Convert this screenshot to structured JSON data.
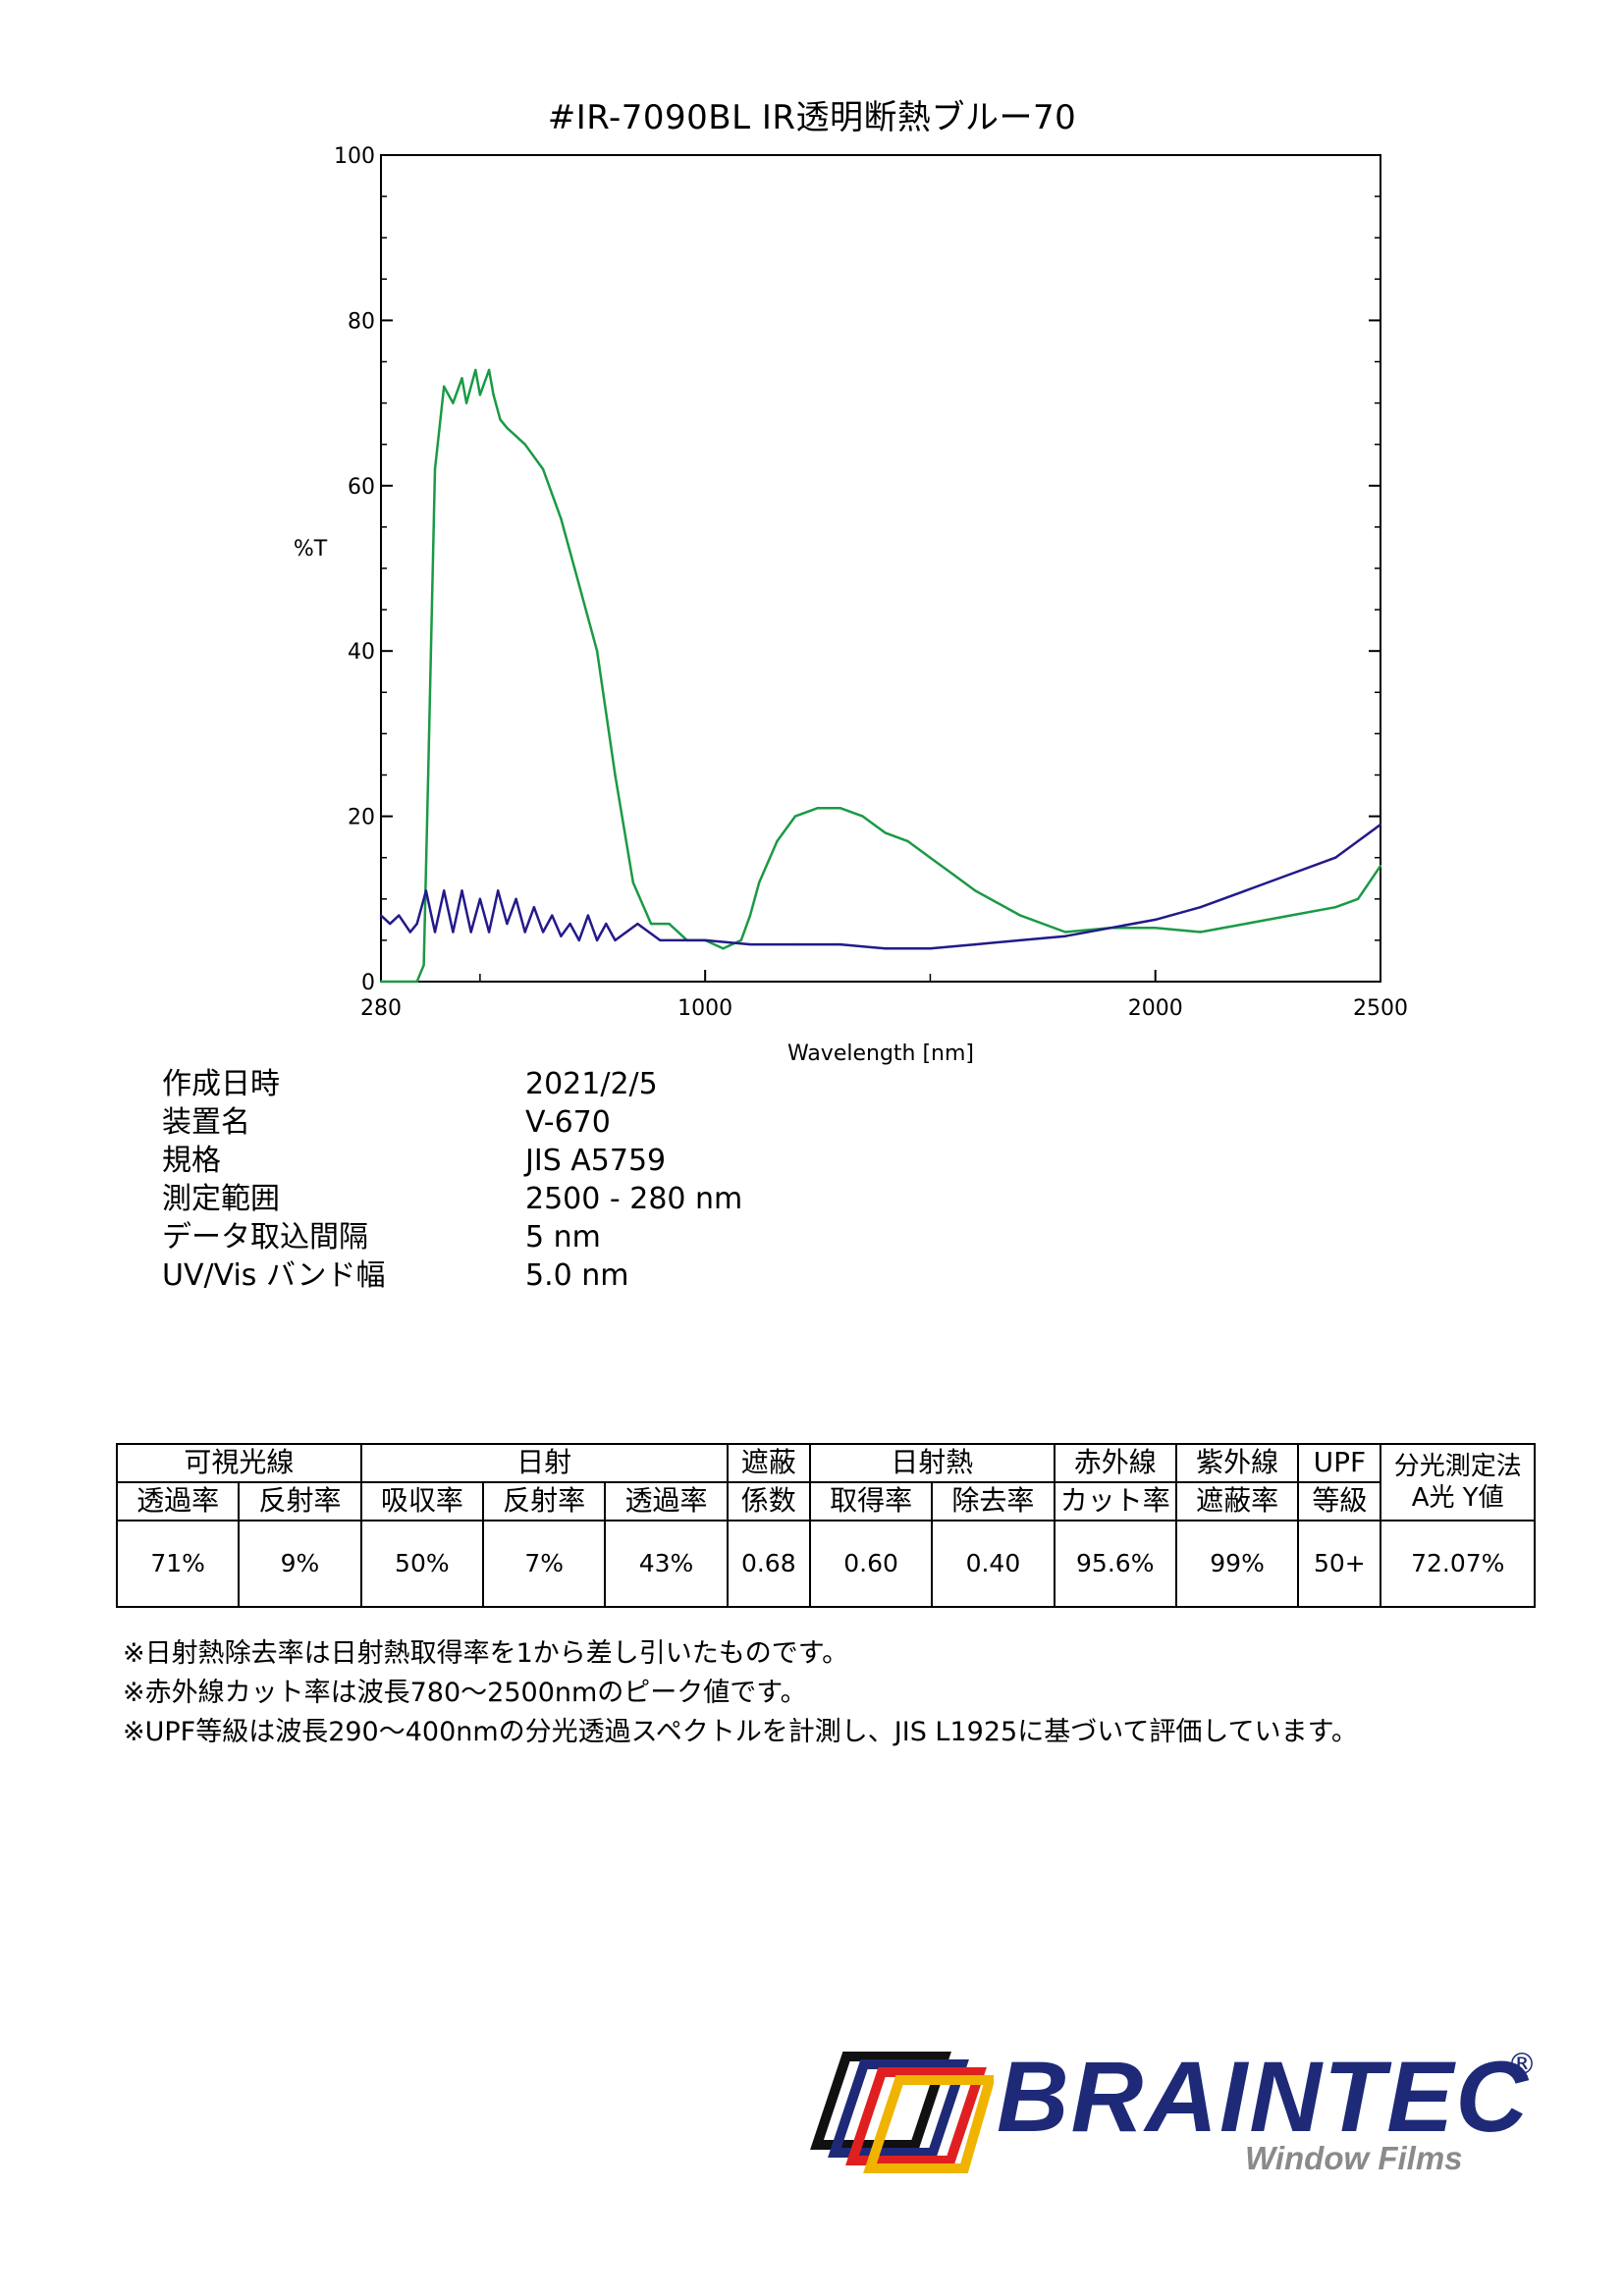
{
  "document": {
    "title": "#IR-7090BL  IR透明断熱ブルー70"
  },
  "chart_data": {
    "type": "line",
    "xlabel": "Wavelength [nm]",
    "ylabel": "%T",
    "xlim": [
      280,
      2500
    ],
    "ylim": [
      0,
      100
    ],
    "x_ticks": [
      280,
      1000,
      2000,
      2500
    ],
    "y_ticks": [
      0,
      20,
      40,
      60,
      80,
      100
    ],
    "grid": false,
    "series": [
      {
        "color": "#1a9a45",
        "x": [
          280,
          360,
          375,
          385,
          400,
          420,
          440,
          460,
          470,
          490,
          500,
          520,
          530,
          545,
          560,
          580,
          600,
          640,
          680,
          720,
          760,
          800,
          840,
          880,
          920,
          960,
          1000,
          1040,
          1080,
          1100,
          1120,
          1160,
          1200,
          1250,
          1300,
          1350,
          1400,
          1450,
          1500,
          1550,
          1600,
          1700,
          1800,
          1900,
          2000,
          2100,
          2200,
          2300,
          2400,
          2450,
          2500
        ],
        "y": [
          0,
          0,
          2,
          25,
          62,
          72,
          70,
          73,
          70,
          74,
          71,
          74,
          71,
          68,
          67,
          66,
          65,
          62,
          56,
          48,
          40,
          25,
          12,
          7,
          7,
          5,
          5,
          4,
          5,
          8,
          12,
          17,
          20,
          21,
          21,
          20,
          18,
          17,
          15,
          13,
          11,
          8,
          6,
          6.5,
          6.5,
          6,
          7,
          8,
          9,
          10,
          14
        ]
      },
      {
        "color": "#221a8a",
        "x": [
          280,
          300,
          320,
          345,
          360,
          380,
          400,
          420,
          440,
          460,
          480,
          500,
          520,
          540,
          560,
          580,
          600,
          620,
          640,
          660,
          680,
          700,
          720,
          740,
          760,
          780,
          800,
          850,
          900,
          950,
          1000,
          1100,
          1200,
          1300,
          1400,
          1500,
          1600,
          1700,
          1800,
          1900,
          2000,
          2100,
          2200,
          2300,
          2400,
          2450,
          2500
        ],
        "y": [
          8,
          7,
          8,
          6,
          7,
          11,
          6,
          11,
          6,
          11,
          6,
          10,
          6,
          11,
          7,
          10,
          6,
          9,
          6,
          8,
          5.5,
          7,
          5,
          8,
          5,
          7,
          5,
          7,
          5,
          5,
          5,
          4.5,
          4.5,
          4.5,
          4,
          4,
          4.5,
          5,
          5.5,
          6.5,
          7.5,
          9,
          11,
          13,
          15,
          17,
          19
        ]
      }
    ]
  },
  "info": {
    "rows": [
      {
        "label": "作成日時",
        "value": "2021/2/5"
      },
      {
        "label": "装置名",
        "value": "V-670"
      },
      {
        "label": "規格",
        "value": "JIS A5759"
      },
      {
        "label": "測定範囲",
        "value": "2500 - 280 nm"
      },
      {
        "label": "データ取込間隔",
        "value": "5 nm"
      },
      {
        "label": "UV/Vis バンド幅",
        "value": "5.0 nm"
      }
    ]
  },
  "spec_table": {
    "group_visible": "可視光線",
    "group_solar": "日射",
    "group_shading_1": "遮蔽",
    "group_shading_2": "係数",
    "group_solar_heat": "日射熱",
    "group_ir_1": "赤外線",
    "group_ir_2": "カット率",
    "group_uv_1": "紫外線",
    "group_uv_2": "遮蔽率",
    "group_upf_1": "UPF",
    "group_upf_2": "等級",
    "group_spec_1": "分光測定法",
    "group_spec_2": "A光 Y値",
    "vis_trans": "透過率",
    "vis_refl": "反射率",
    "sol_abs": "吸収率",
    "sol_refl": "反射率",
    "sol_trans": "透過率",
    "heat_gain": "取得率",
    "heat_rej": "除去率",
    "values": [
      "71%",
      "9%",
      "50%",
      "7%",
      "43%",
      "0.68",
      "0.60",
      "0.40",
      "95.6%",
      "99%",
      "50+",
      "72.07%"
    ]
  },
  "notes": [
    "※日射熱除去率は日射熱取得率を1から差し引いたものです。",
    "※赤外線カット率は波長780～2500nmのピーク値です。",
    "※UPF等級は波長290～400nmの分光透過スペクトルを計測し、JIS L1925に基づいて評価しています。"
  ],
  "brand": {
    "name": "BRAINTEC",
    "registered": "®",
    "tagline": "Window Films",
    "logo_colors": [
      "#1e2a78",
      "#e02020",
      "#f0b400",
      "#111111"
    ]
  }
}
